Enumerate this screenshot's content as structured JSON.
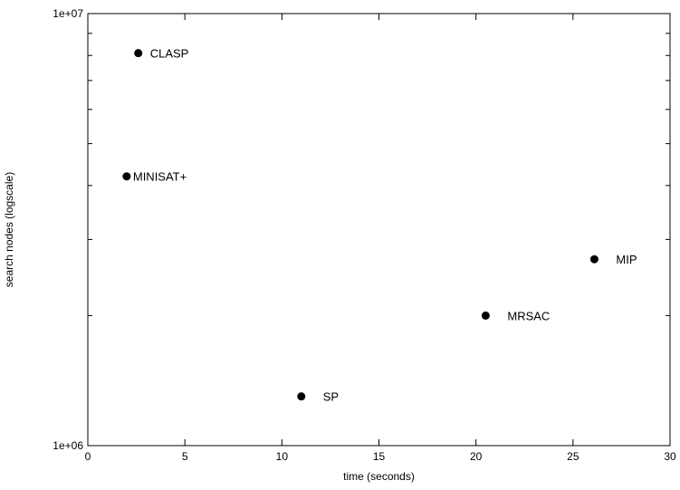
{
  "chart_data": {
    "type": "scatter",
    "xlabel": "time (seconds)",
    "ylabel": "search nodes (logscale)",
    "xlim": [
      0,
      30
    ],
    "ylim": [
      1000000,
      10000000
    ],
    "yscale": "log",
    "grid": false,
    "xticks": [
      0,
      5,
      10,
      15,
      20,
      25,
      30
    ],
    "yticks": [
      1000000,
      10000000
    ],
    "ytick_labels": [
      "1e+06",
      "1e+07"
    ],
    "points": [
      {
        "label": "CLASP",
        "x": 2.6,
        "y": 8100000
      },
      {
        "label": "MINISAT+",
        "x": 2.0,
        "y": 4200000
      },
      {
        "label": "MIP",
        "x": 26.1,
        "y": 2700000
      },
      {
        "label": "MRSAC",
        "x": 20.5,
        "y": 2000000
      },
      {
        "label": "SP",
        "x": 11.0,
        "y": 1300000
      }
    ],
    "marker_color": "#000000"
  }
}
